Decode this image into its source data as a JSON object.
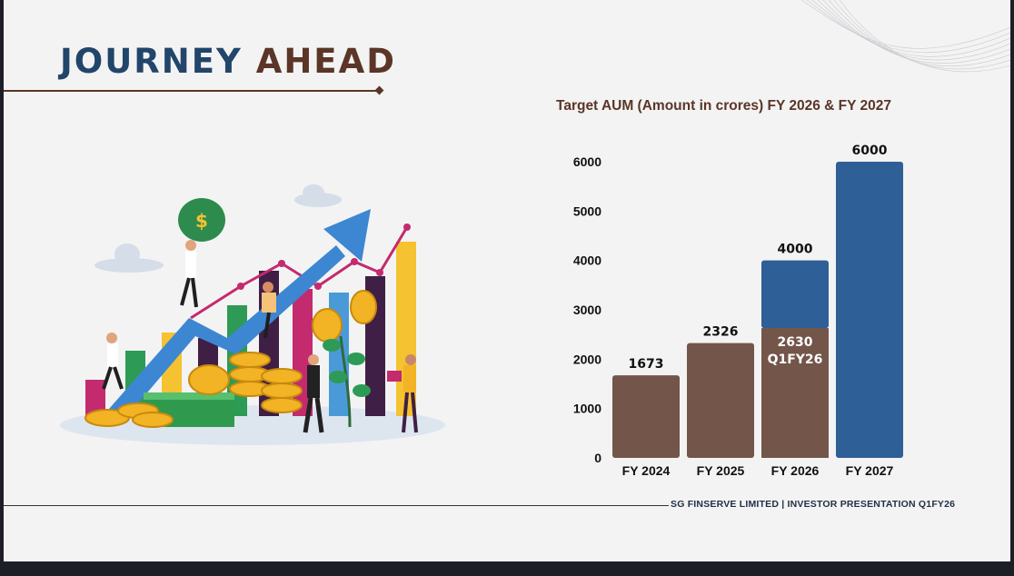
{
  "slide": {
    "title_part1": "JOURNEY",
    "title_part2": "AHEAD",
    "footer": "SG FINSERVE LIMITED | INVESTOR PRESENTATION Q1FY26"
  },
  "colors": {
    "navy": "#22456a",
    "brown": "#5b3527",
    "bar_brown": "#735549",
    "bar_blue": "#2e5f96"
  },
  "illustration": {
    "subject": "growth-illustration",
    "icons": [
      "money-bag-icon",
      "rising-arrow-icon",
      "coin-stack-icon",
      "cash-bundle-icon",
      "plant-icon",
      "bar-chart-icon",
      "cloud-icon"
    ]
  },
  "chart_data": {
    "type": "bar",
    "title": "Target AUM (Amount in crores) FY 2026 & FY 2027",
    "categories": [
      "FY 2024",
      "FY 2025",
      "FY 2026",
      "FY 2027"
    ],
    "series": [
      {
        "values": [
          1673,
          2326,
          2630,
          null
        ],
        "color": "#735549"
      },
      {
        "values": [
          null,
          null,
          4000,
          6000
        ],
        "color": "#2e5f96"
      }
    ],
    "data_labels": [
      "1673",
      "2326",
      "4000",
      "6000"
    ],
    "inner_label": {
      "category": "FY 2026",
      "value_text": "2630",
      "period_text": "Q1FY26"
    },
    "ylim": [
      0,
      6000
    ],
    "yticks": [
      0,
      1000,
      2000,
      3000,
      4000,
      5000,
      6000
    ],
    "grid": false,
    "legend": "none"
  }
}
